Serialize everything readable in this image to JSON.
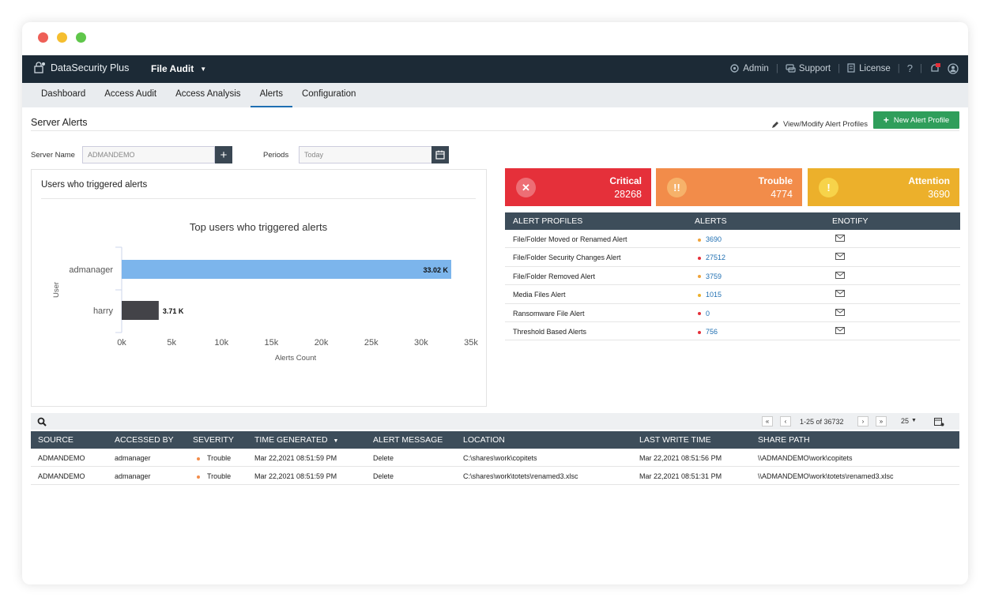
{
  "window": {
    "traffic_colors": [
      "#ee5f57",
      "#f5be2f",
      "#5fc64a"
    ]
  },
  "topbar": {
    "brand": "DataSecurity Plus",
    "module": "File Audit",
    "nav": [
      {
        "icon": "admin-icon",
        "label": "Admin"
      },
      {
        "icon": "support-icon",
        "label": "Support"
      },
      {
        "icon": "license-icon",
        "label": "License"
      }
    ],
    "help": "?"
  },
  "tabs": [
    "Dashboard",
    "Access Audit",
    "Access Analysis",
    "Alerts",
    "Configuration"
  ],
  "active_tab": "Alerts",
  "page": {
    "title": "Server Alerts",
    "view_modify": "View/Modify Alert Profiles",
    "new_profile": "New Alert Profile"
  },
  "filters": {
    "server_label": "Server Name",
    "server_value": "ADMANDEMO",
    "periods_label": "Periods",
    "periods_value": "Today"
  },
  "chart_panel": {
    "title": "Users who triggered alerts"
  },
  "chart_data": {
    "type": "bar",
    "orientation": "horizontal",
    "title": "Top users who triggered alerts",
    "categories": [
      "admanager",
      "harry"
    ],
    "values": [
      33020,
      3710
    ],
    "data_labels": [
      "33.02 K",
      "3.71 K"
    ],
    "bar_colors": [
      "#7cb5ec",
      "#434348"
    ],
    "xlabel": "Alerts Count",
    "ylabel": "User",
    "xlim": [
      0,
      35000
    ],
    "xticks": [
      "0k",
      "5k",
      "10k",
      "15k",
      "20k",
      "25k",
      "30k",
      "35k"
    ],
    "grid": false
  },
  "cards": [
    {
      "label": "Critical",
      "value": "28268",
      "icon": "close-icon",
      "color": "#e5303a"
    },
    {
      "label": "Trouble",
      "value": "4774",
      "icon": "double-exclamation-icon",
      "color": "#f28c4a"
    },
    {
      "label": "Attention",
      "value": "3690",
      "icon": "exclamation-icon",
      "color": "#ecb02b"
    }
  ],
  "alert_profiles": {
    "headers": [
      "ALERT PROFILES",
      "ALERTS",
      "ENOTIFY"
    ],
    "rows": [
      {
        "name": "File/Folder Moved or Renamed Alert",
        "count": "3690",
        "severity_color": "#f0a33a"
      },
      {
        "name": "File/Folder Security Changes Alert",
        "count": "27512",
        "severity_color": "#e5303a"
      },
      {
        "name": "File/Folder Removed Alert",
        "count": "3759",
        "severity_color": "#f0a33a"
      },
      {
        "name": "Media Files Alert",
        "count": "1015",
        "severity_color": "#ecb02b"
      },
      {
        "name": "Ransomware File Alert",
        "count": "0",
        "severity_color": "#e5303a"
      },
      {
        "name": "Threshold Based Alerts",
        "count": "756",
        "severity_color": "#e5303a"
      }
    ]
  },
  "pagination": {
    "range": "1-25 of 36732",
    "page_size": "25"
  },
  "alerts_table": {
    "headers": [
      "SOURCE",
      "ACCESSED BY",
      "SEVERITY",
      "TIME GENERATED",
      "ALERT MESSAGE",
      "LOCATION",
      "LAST WRITE TIME",
      "SHARE PATH"
    ],
    "rows": [
      [
        "ADMANDEMO",
        "admanager",
        "Trouble",
        "Mar 22,2021 08:51:59 PM",
        "Delete",
        "C:\\shares\\work\\copitets",
        "Mar 22,2021 08:51:56 PM",
        "\\\\ADMANDEMO\\work\\copitets"
      ],
      [
        "ADMANDEMO",
        "admanager",
        "Trouble",
        "Mar 22,2021 08:51:59 PM",
        "Delete",
        "C:\\shares\\work\\totets\\renamed3.xlsc",
        "Mar 22,2021 08:51:31 PM",
        "\\\\ADMANDEMO\\work\\totets\\renamed3.xlsc"
      ]
    ]
  }
}
